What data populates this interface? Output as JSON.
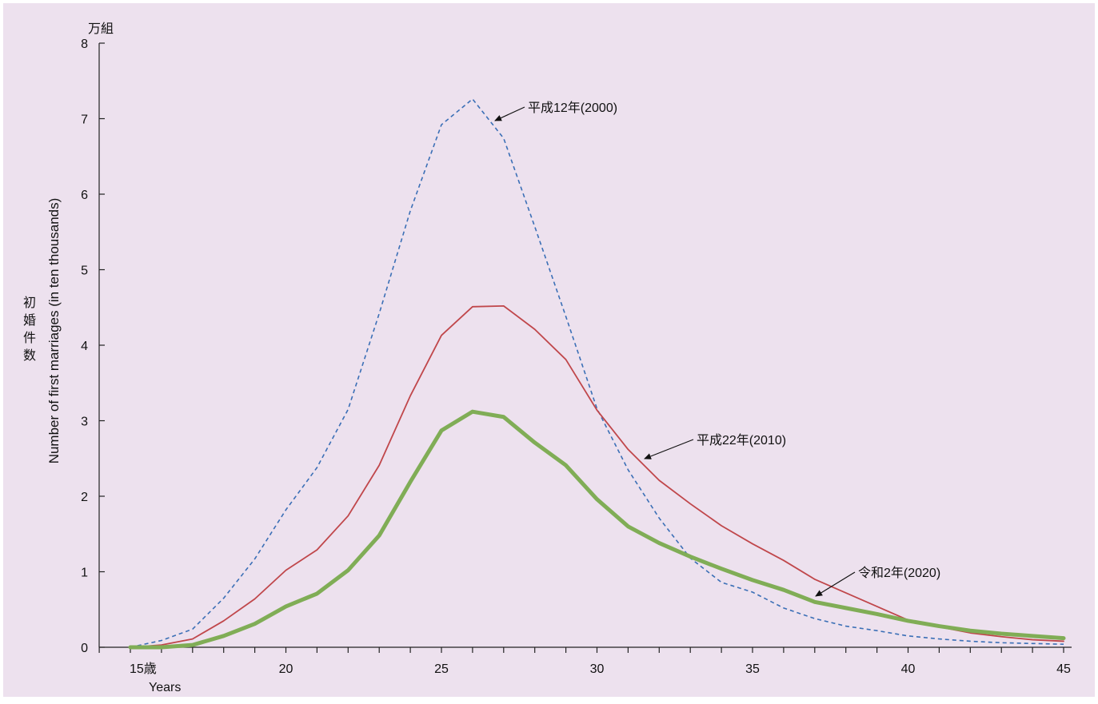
{
  "chart_data": {
    "type": "line",
    "background": "#ede1ee",
    "x": [
      15,
      16,
      17,
      18,
      19,
      20,
      21,
      22,
      23,
      24,
      25,
      26,
      27,
      28,
      29,
      30,
      31,
      32,
      33,
      34,
      35,
      36,
      37,
      38,
      39,
      40,
      41,
      42,
      43,
      44,
      45
    ],
    "xlim": [
      14,
      45.3
    ],
    "ylim": [
      0,
      8
    ],
    "xticks": [
      15,
      20,
      25,
      30,
      35,
      40,
      45
    ],
    "xtick_labels": [
      "15歳",
      "20",
      "25",
      "30",
      "35",
      "40",
      "45"
    ],
    "xunit": "Years",
    "yticks": [
      0,
      1,
      2,
      3,
      4,
      5,
      6,
      7,
      8
    ],
    "yunit": "万組",
    "ylabel_jp": [
      "初",
      "婚",
      "件",
      "数"
    ],
    "ylabel_en": "Number of first marriages (in ten thousands)",
    "grid": false,
    "series": [
      {
        "name": "平成12年(2000)",
        "color": "#3b6fb6",
        "style": "dashed",
        "values": [
          0.0,
          0.09,
          0.24,
          0.65,
          1.17,
          1.82,
          2.38,
          3.15,
          4.42,
          5.78,
          6.92,
          7.26,
          6.74,
          5.57,
          4.38,
          3.16,
          2.35,
          1.71,
          1.18,
          0.86,
          0.73,
          0.52,
          0.38,
          0.28,
          0.22,
          0.15,
          0.11,
          0.08,
          0.06,
          0.05,
          0.04
        ]
      },
      {
        "name": "平成22年(2010)",
        "color": "#c0474b",
        "style": "solid",
        "values": [
          0.0,
          0.03,
          0.11,
          0.35,
          0.64,
          1.02,
          1.29,
          1.74,
          2.41,
          3.33,
          4.13,
          4.51,
          4.52,
          4.21,
          3.81,
          3.14,
          2.62,
          2.21,
          1.9,
          1.61,
          1.37,
          1.15,
          0.9,
          0.72,
          0.54,
          0.36,
          0.27,
          0.19,
          0.14,
          0.1,
          0.08
        ]
      },
      {
        "name": "令和2年(2020)",
        "color": "#80ad56",
        "style": "thick",
        "values": [
          0.0,
          0.0,
          0.03,
          0.15,
          0.31,
          0.54,
          0.71,
          1.02,
          1.48,
          2.19,
          2.87,
          3.12,
          3.05,
          2.71,
          2.41,
          1.96,
          1.6,
          1.38,
          1.2,
          1.04,
          0.89,
          0.76,
          0.6,
          0.52,
          0.44,
          0.35,
          0.28,
          0.22,
          0.18,
          0.15,
          0.12
        ]
      }
    ],
    "annotations": [
      {
        "text": "平成12年(2000)",
        "series": 0
      },
      {
        "text": "平成22年(2010)",
        "series": 1
      },
      {
        "text": "令和2年(2020)",
        "series": 2
      }
    ]
  }
}
